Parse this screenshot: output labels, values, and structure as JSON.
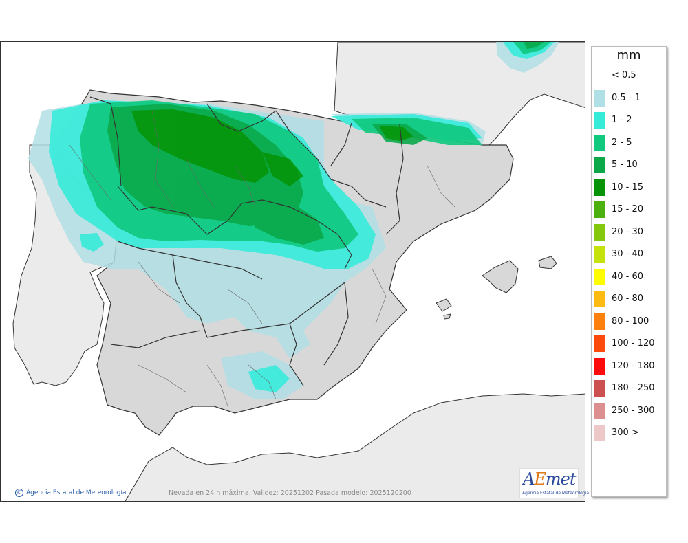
{
  "legend": {
    "unit": "mm",
    "items": [
      {
        "label": "< 0.5",
        "color": ""
      },
      {
        "label": "0.5 - 1",
        "color": "#b0dfe5"
      },
      {
        "label": "1 - 2",
        "color": "#37ebd9"
      },
      {
        "label": "2 - 5",
        "color": "#10c97e"
      },
      {
        "label": "5 - 10",
        "color": "#0ba84a"
      },
      {
        "label": "10 - 15",
        "color": "#069406"
      },
      {
        "label": "15 - 20",
        "color": "#4cb00e"
      },
      {
        "label": "20 - 30",
        "color": "#84c80e"
      },
      {
        "label": "30 - 40",
        "color": "#c5e20c"
      },
      {
        "label": "40 - 60",
        "color": "#fdfd00"
      },
      {
        "label": "60 - 80",
        "color": "#fdbb12"
      },
      {
        "label": "80 - 100",
        "color": "#fd7f0e"
      },
      {
        "label": "100 - 120",
        "color": "#fd4a0c"
      },
      {
        "label": "120 - 180",
        "color": "#fd0a0a"
      },
      {
        "label": "180 - 250",
        "color": "#cd5050"
      },
      {
        "label": "250 - 300",
        "color": "#dd8f8f"
      },
      {
        "label": "300 >",
        "color": "#ecc8c8"
      }
    ]
  },
  "credit": {
    "icon": "copyright-icon",
    "text": "Agencia Estatal de Meteorología"
  },
  "caption": "Nevada en 24 h máxima. Validez: 20251202 Pasada modelo: 2025120200",
  "logo": {
    "word_a": "A",
    "word_e": "E",
    "word_rest": "met",
    "subtitle": "Agencia Estatal de Meteorología"
  },
  "colors": {
    "sea": "#ffffff",
    "land_foreign": "#ebebeb",
    "land_spain": "#d8d8d8",
    "border": "#333333"
  }
}
